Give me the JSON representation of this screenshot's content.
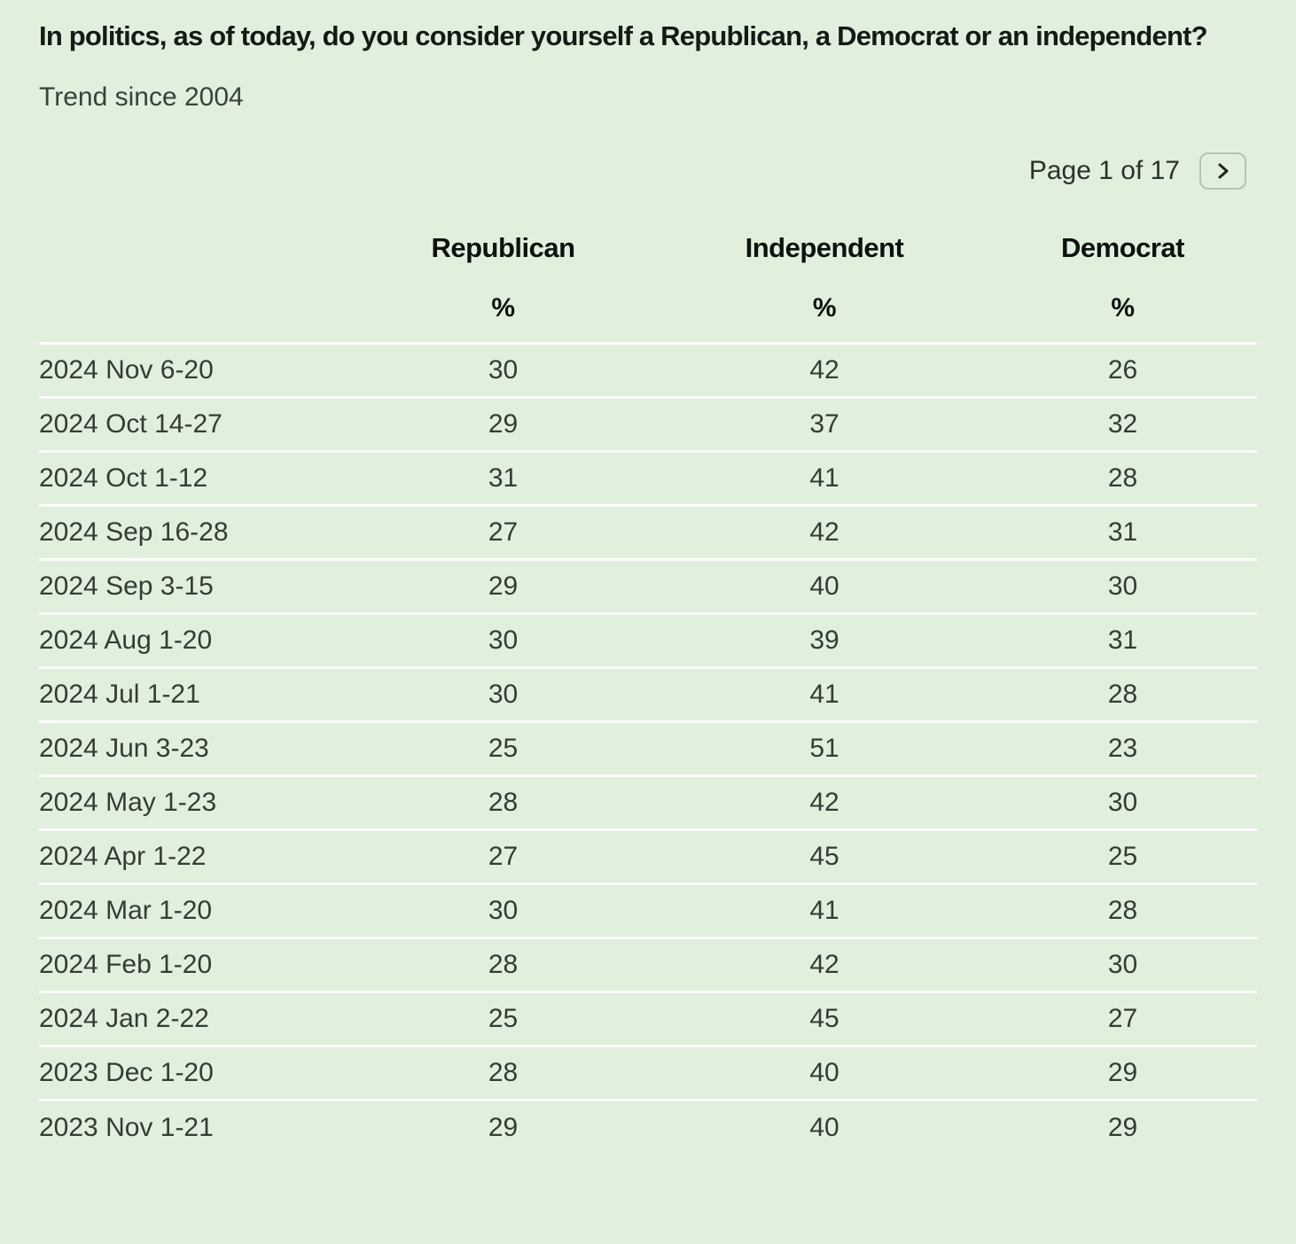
{
  "colors": {
    "background": "#e1efdd",
    "row_divider": "#fbfdf9",
    "title_text": "#161a16",
    "body_text": "#333d34",
    "button_border": "#b7c2b4"
  },
  "header": {
    "title": "In politics, as of today, do you consider yourself a Republican, a Democrat or an independent?",
    "subtitle": "Trend since 2004"
  },
  "pagination": {
    "label": "Page 1 of 17",
    "next_icon": "chevron-right"
  },
  "chart_data": {
    "type": "table",
    "title": "In politics, as of today, do you consider yourself a Republican, a Democrat or an independent?",
    "subtitle": "Trend since 2004",
    "columns": [
      "Republican",
      "Independent",
      "Democrat"
    ],
    "percent_symbol": "%",
    "rows": [
      {
        "label": "2024 Nov 6-20",
        "values": [
          30,
          42,
          26
        ]
      },
      {
        "label": "2024 Oct 14-27",
        "values": [
          29,
          37,
          32
        ]
      },
      {
        "label": "2024 Oct 1-12",
        "values": [
          31,
          41,
          28
        ]
      },
      {
        "label": "2024 Sep 16-28",
        "values": [
          27,
          42,
          31
        ]
      },
      {
        "label": "2024 Sep 3-15",
        "values": [
          29,
          40,
          30
        ]
      },
      {
        "label": "2024 Aug 1-20",
        "values": [
          30,
          39,
          31
        ]
      },
      {
        "label": "2024 Jul 1-21",
        "values": [
          30,
          41,
          28
        ]
      },
      {
        "label": "2024 Jun 3-23",
        "values": [
          25,
          51,
          23
        ]
      },
      {
        "label": "2024 May 1-23",
        "values": [
          28,
          42,
          30
        ]
      },
      {
        "label": "2024 Apr 1-22",
        "values": [
          27,
          45,
          25
        ]
      },
      {
        "label": "2024 Mar 1-20",
        "values": [
          30,
          41,
          28
        ]
      },
      {
        "label": "2024 Feb 1-20",
        "values": [
          28,
          42,
          30
        ]
      },
      {
        "label": "2024 Jan 2-22",
        "values": [
          25,
          45,
          27
        ]
      },
      {
        "label": "2023 Dec 1-20",
        "values": [
          28,
          40,
          29
        ]
      },
      {
        "label": "2023 Nov 1-21",
        "values": [
          29,
          40,
          29
        ]
      }
    ]
  }
}
